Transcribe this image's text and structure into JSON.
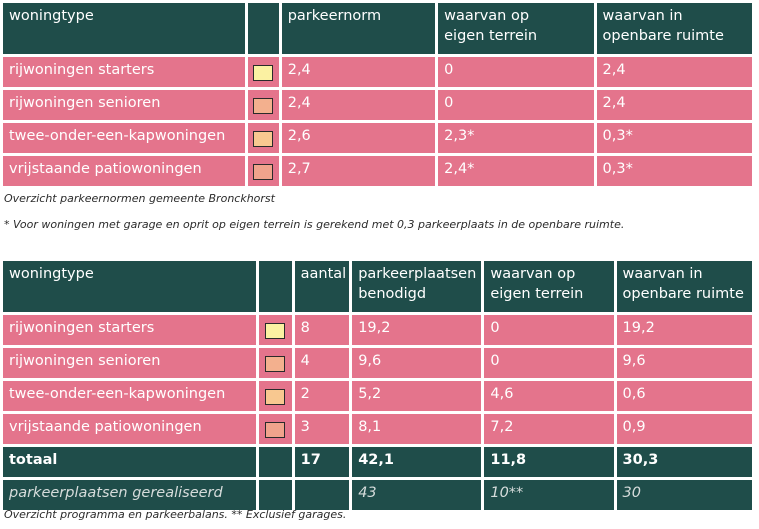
{
  "table1": {
    "headers": [
      "woningtype",
      "",
      "parkeernorm",
      "waarvan op\neigen terrein",
      "waarvan in\nopenbare ruimte"
    ],
    "rows": [
      {
        "type": "rijwoningen starters",
        "swatch": "#fbf1a2",
        "norm": "2,4",
        "eigen": "0",
        "openbaar": "2,4"
      },
      {
        "type": "rijwoningen senioren",
        "swatch": "#f3b08e",
        "norm": "2,4",
        "eigen": "0",
        "openbaar": "2,4"
      },
      {
        "type": "twee-onder-een-kapwoningen",
        "swatch": "#f8c890",
        "norm": "2,6",
        "eigen": "2,3*",
        "openbaar": "0,3*"
      },
      {
        "type": "vrijstaande patiowoningen",
        "swatch": "#f0a38c",
        "norm": "2,7",
        "eigen": "2,4*",
        "openbaar": "0,3*"
      }
    ]
  },
  "caption1": "Overzicht parkeernormen gemeente Bronckhorst",
  "footnote1": "* Voor woningen met garage en oprit op eigen terrein is gerekend met 0,3 parkeerplaats in de openbare ruimte.",
  "table2": {
    "headers": [
      "woningtype",
      "",
      "aantal",
      "parkeerplaatsen\nbenodigd",
      "waarvan op\neigen terrein",
      "waarvan in\nopenbare ruimte"
    ],
    "rows": [
      {
        "type": "rijwoningen starters",
        "swatch": "#fbf1a2",
        "aantal": "8",
        "benodigd": "19,2",
        "eigen": "0",
        "openbaar": "19,2"
      },
      {
        "type": "rijwoningen senioren",
        "swatch": "#f3b08e",
        "aantal": "4",
        "benodigd": "9,6",
        "eigen": "0",
        "openbaar": "9,6"
      },
      {
        "type": "twee-onder-een-kapwoningen",
        "swatch": "#f8c890",
        "aantal": "2",
        "benodigd": "5,2",
        "eigen": "4,6",
        "openbaar": "0,6"
      },
      {
        "type": "vrijstaande patiowoningen",
        "swatch": "#f0a38c",
        "aantal": "3",
        "benodigd": "8,1",
        "eigen": "7,2",
        "openbaar": "0,9"
      }
    ],
    "total": {
      "type": "totaal",
      "aantal": "17",
      "benodigd": "42,1",
      "eigen": "11,8",
      "openbaar": "30,3"
    },
    "realised": {
      "type": "parkeerplaatsen gerealiseerd",
      "aantal": "",
      "benodigd": "43",
      "eigen": "10**",
      "openbaar": "30"
    }
  },
  "caption2": "Overzicht programma en parkeerbalans. ** Exclusief garages.",
  "colors": {
    "header_bg": "#1f4d4a",
    "row_bg": "#e4748c",
    "text_light": "#ffffff"
  }
}
